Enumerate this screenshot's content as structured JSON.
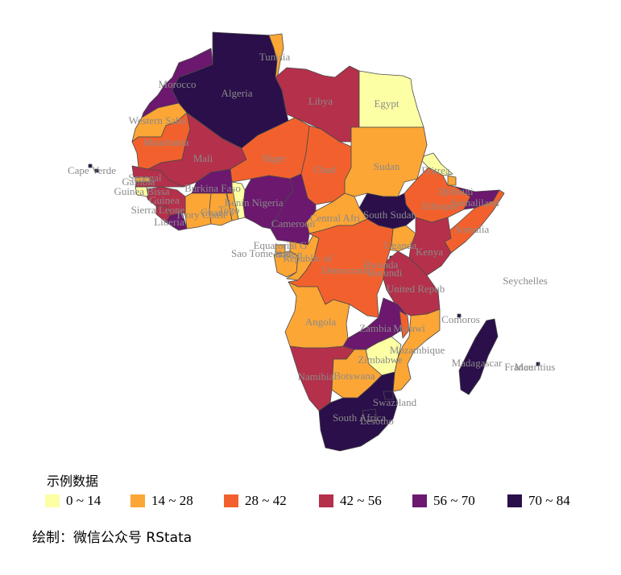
{
  "colors": {
    "bins": [
      "#fcffa4",
      "#fca636",
      "#f2612d",
      "#b5304a",
      "#6b186e",
      "#2a0f4a"
    ],
    "stroke": "#4a4a4a",
    "label": "#8a8a8a"
  },
  "legend": {
    "title": "示例数据",
    "items": [
      "0 ~ 14",
      "14 ~ 28",
      "28 ~ 42",
      "42 ~ 56",
      "56 ~ 70",
      "70 ~ 84"
    ]
  },
  "caption": "绘制：微信公众号 RStata",
  "map_data": {
    "countries": [
      {
        "name": "Morocco",
        "bin": 4
      },
      {
        "name": "Western Sahara",
        "bin": 1
      },
      {
        "name": "Algeria",
        "bin": 5
      },
      {
        "name": "Tunisia",
        "bin": 1
      },
      {
        "name": "Libya",
        "bin": 3
      },
      {
        "name": "Egypt",
        "bin": 0
      },
      {
        "name": "Mauritania",
        "bin": 2
      },
      {
        "name": "Mali",
        "bin": 3
      },
      {
        "name": "Niger",
        "bin": 2
      },
      {
        "name": "Chad",
        "bin": 2
      },
      {
        "name": "Sudan",
        "bin": 1
      },
      {
        "name": "Eritrea",
        "bin": 0
      },
      {
        "name": "Djibouti",
        "bin": 1
      },
      {
        "name": "Ethiopia",
        "bin": 2
      },
      {
        "name": "Somaliland",
        "bin": 4
      },
      {
        "name": "Somalia",
        "bin": 2
      },
      {
        "name": "South Sudan",
        "bin": 5
      },
      {
        "name": "Central African Rep.",
        "bin": 1
      },
      {
        "name": "Cameroon",
        "bin": 4
      },
      {
        "name": "Nigeria",
        "bin": 4
      },
      {
        "name": "Benin",
        "bin": 0
      },
      {
        "name": "Togo",
        "bin": 1
      },
      {
        "name": "Ghana",
        "bin": 1
      },
      {
        "name": "Burkina Faso",
        "bin": 4
      },
      {
        "name": "Ivory Coast",
        "bin": 1
      },
      {
        "name": "Liberia",
        "bin": 4
      },
      {
        "name": "Sierra Leone",
        "bin": 3
      },
      {
        "name": "Guinea",
        "bin": 3
      },
      {
        "name": "Guinea-Bissau",
        "bin": 0
      },
      {
        "name": "Gambia",
        "bin": 1
      },
      {
        "name": "Senegal",
        "bin": 3
      },
      {
        "name": "Equatorial Guinea",
        "bin": 1
      },
      {
        "name": "Gabon",
        "bin": 1
      },
      {
        "name": "Republic of Congo",
        "bin": 1
      },
      {
        "name": "Democratic Republic of the Congo",
        "bin": 2
      },
      {
        "name": "Uganda",
        "bin": 1
      },
      {
        "name": "Kenya",
        "bin": 3
      },
      {
        "name": "Rwanda",
        "bin": 5
      },
      {
        "name": "Burundi",
        "bin": 1
      },
      {
        "name": "United Republic of Tanzania",
        "bin": 3
      },
      {
        "name": "Angola",
        "bin": 1
      },
      {
        "name": "Zambia",
        "bin": 4
      },
      {
        "name": "Malawi",
        "bin": 2
      },
      {
        "name": "Mozambique",
        "bin": 1
      },
      {
        "name": "Zimbabwe",
        "bin": 0
      },
      {
        "name": "Namibia",
        "bin": 3
      },
      {
        "name": "Botswana",
        "bin": 1
      },
      {
        "name": "South Africa",
        "bin": 5
      },
      {
        "name": "Swaziland",
        "bin": 5
      },
      {
        "name": "Lesotho",
        "bin": 5
      },
      {
        "name": "Madagascar",
        "bin": 5
      },
      {
        "name": "Cape Verde",
        "bin": 5
      },
      {
        "name": "Comoros",
        "bin": 5
      },
      {
        "name": "Mauritius",
        "bin": 5
      }
    ],
    "labels": [
      "Tunisia",
      "Morocco",
      "Algeria",
      "Libya",
      "Egypt",
      "Western Saha",
      "Mauritania",
      "Mali",
      "Niger",
      "Chad",
      "Sudan",
      "Eritrea",
      "Djibouti",
      "Somaliland",
      "Ethiopia",
      "Somalia",
      "South Sudan",
      "Central Afri",
      "Cameroon",
      "Nigeria",
      "Benin",
      "Togo",
      "Ghana",
      "Burkina Faso",
      "Ivory Coast",
      "Liberia",
      "Sierra Leone",
      "Guinea",
      "Guinea Bissa",
      "Gambia",
      "Senegal",
      "Cape Verde",
      "Equatorial G",
      "Gabon",
      "Sao Tome and",
      "Republic of",
      "Democratic",
      "Uganda",
      "Kenya",
      "Rwanda",
      "Burundi",
      "United Repub",
      "Seychelles",
      "Angola",
      "Zambia",
      "Malawi",
      "Comoros",
      "Mozambique",
      "Zimbabwe",
      "Madagascar",
      "France",
      "Mauritius",
      "Namibia",
      "Botswana",
      "Swaziland",
      "South Africa",
      "Lesotho"
    ]
  }
}
